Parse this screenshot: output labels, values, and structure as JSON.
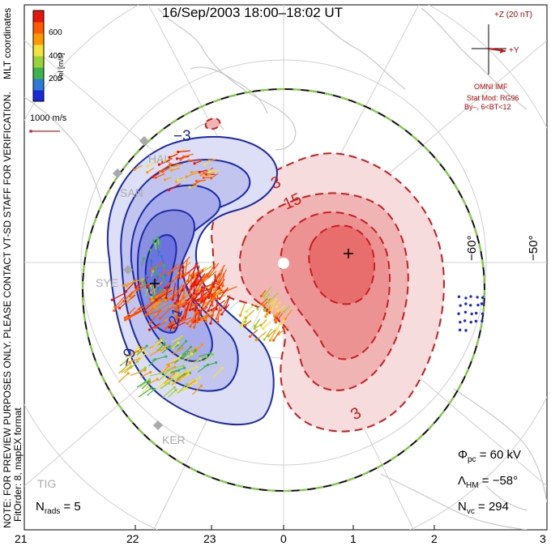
{
  "title": "16/Sep/2003 18:00–18:02 UT",
  "colorbar": {
    "label": "Vel [m/s]",
    "ticks": [
      "600",
      "400",
      "200"
    ],
    "colors": [
      "#1a2ad6",
      "#2a7ad8",
      "#3cb44b",
      "#9ad23a",
      "#f2e33a",
      "#ff9900",
      "#ff5a00",
      "#e8150c"
    ]
  },
  "coords_label": "MLT coordinates",
  "vector_scale_label": "1000 m/s",
  "watermark": "NOTE: FOR PREVIEW PURPOSES ONLY. PLEASE CONTACT VT-SD STAFF FOR VERIFICATION.",
  "fit_info": "FitOrder: 8, mapEX format",
  "imf": {
    "z_label": "+Z (20 nT)",
    "y_label": "+Y",
    "source": "OMNI IMF",
    "model": "Stat Mod: RG96",
    "condition": "By–, 6<BT<12"
  },
  "latitude_labels": [
    "−60°",
    "−50°"
  ],
  "mlt_ticks": [
    "21",
    "22",
    "23",
    "0",
    "1",
    "2",
    "3"
  ],
  "contour_labels": [
    "3",
    "15",
    "3",
    "−3",
    "−9",
    "−21"
  ],
  "stations": [
    "HAL",
    "SAN",
    "SYE",
    "KER",
    "TIG"
  ],
  "stats": {
    "phi_symbol": "Φ",
    "phi_sub": "pc",
    "phi_value": "= 60 kV",
    "lambda_symbol": "Λ",
    "lambda_sub": "HM",
    "lambda_value": "= −58°",
    "nvc_symbol": "N",
    "nvc_sub": "vc",
    "nvc_value": "= 294",
    "nrads_symbol": "N",
    "nrads_sub": "rads",
    "nrads_value": "= 5"
  },
  "colors": {
    "positive_contour": "#c81e1e",
    "negative_contour": "#1a2aa8",
    "boundary_a": "#111111",
    "boundary_b": "#7ad23a",
    "pole_marker": "#ffffff"
  }
}
